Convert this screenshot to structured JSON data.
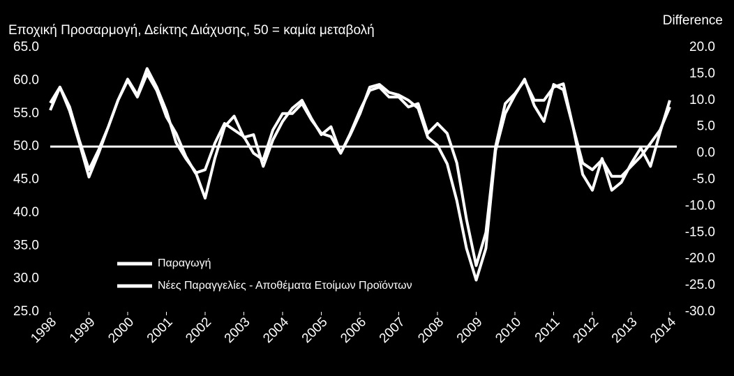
{
  "chart_data": {
    "type": "line",
    "title": "Εποχική Προσαρμογή, Δείκτης Διάχυσης, 50 = καμία μεταβολή",
    "y2_label": "Difference",
    "x": [
      1998,
      1998.25,
      1998.5,
      1998.75,
      1999,
      1999.25,
      1999.5,
      1999.75,
      2000,
      2000.25,
      2000.5,
      2000.75,
      2001,
      2001.25,
      2001.5,
      2001.75,
      2002,
      2002.25,
      2002.5,
      2002.75,
      2003,
      2003.25,
      2003.5,
      2003.75,
      2004,
      2004.25,
      2004.5,
      2004.75,
      2005,
      2005.25,
      2005.5,
      2005.75,
      2006,
      2006.25,
      2006.5,
      2006.75,
      2007,
      2007.25,
      2007.5,
      2007.75,
      2008,
      2008.25,
      2008.5,
      2008.75,
      2009,
      2009.25,
      2009.5,
      2009.75,
      2010,
      2010.25,
      2010.5,
      2010.75,
      2011,
      2011.25,
      2011.5,
      2011.75,
      2012,
      2012.25,
      2012.5,
      2012.75,
      2013,
      2013.25,
      2013.5,
      2013.75,
      2014
    ],
    "series": [
      {
        "name": "Παραγωγή",
        "color": "#ffffff",
        "axis": "y",
        "values": [
          55.5,
          59.0,
          56.0,
          51.0,
          46.5,
          49.5,
          53.0,
          57.0,
          60.0,
          57.5,
          61.0,
          58.5,
          54.5,
          52.0,
          48.5,
          46.0,
          46.5,
          50.5,
          53.5,
          52.5,
          51.5,
          49.0,
          48.0,
          52.5,
          55.0,
          55.0,
          56.5,
          54.0,
          52.0,
          51.5,
          49.0,
          52.0,
          55.5,
          58.5,
          59.0,
          57.5,
          57.5,
          56.0,
          56.5,
          52.0,
          53.5,
          52.0,
          47.5,
          39.0,
          32.0,
          37.0,
          50.0,
          56.5,
          58.0,
          60.0,
          57.0,
          57.0,
          59.0,
          59.5,
          53.0,
          47.5,
          46.5,
          48.0,
          45.5,
          45.5,
          47.0,
          48.5,
          50.5,
          52.5,
          56.0
        ]
      },
      {
        "name": "Νέες Παραγγελίες - Αποθέματα Ετοίμων Προϊόντων",
        "color": "#ffffff",
        "axis": "y2",
        "values": [
          9.5,
          12.5,
          8.0,
          2.0,
          -4.5,
          0.0,
          5.0,
          10.0,
          14.0,
          11.0,
          16.0,
          12.5,
          8.0,
          2.0,
          -1.0,
          -3.5,
          -8.5,
          -1.0,
          5.0,
          7.0,
          3.0,
          3.5,
          -2.5,
          2.5,
          6.0,
          8.5,
          10.0,
          6.5,
          3.5,
          5.0,
          0.0,
          3.5,
          7.5,
          12.5,
          13.0,
          11.5,
          11.0,
          10.0,
          8.5,
          3.0,
          1.5,
          -2.0,
          -9.0,
          -18.0,
          -24.0,
          -18.0,
          0.5,
          7.5,
          11.0,
          14.0,
          9.0,
          6.0,
          13.0,
          12.0,
          5.0,
          -4.0,
          -7.0,
          -1.0,
          -7.0,
          -5.5,
          -2.0,
          1.0,
          -2.5,
          4.0,
          10.0
        ]
      }
    ],
    "xlim": [
      1998,
      2014
    ],
    "xticks": [
      1998,
      1999,
      2000,
      2001,
      2002,
      2003,
      2004,
      2005,
      2006,
      2007,
      2008,
      2009,
      2010,
      2011,
      2012,
      2013,
      2014
    ],
    "ylim": [
      25,
      65
    ],
    "yticks": [
      {
        "value": 25,
        "label": "25.0"
      },
      {
        "value": 30,
        "label": "30.0"
      },
      {
        "value": 35,
        "label": "35.0"
      },
      {
        "value": 40,
        "label": "40.0"
      },
      {
        "value": 45,
        "label": "45.0"
      },
      {
        "value": 50,
        "label": "50.0"
      },
      {
        "value": 55,
        "label": "55.0"
      },
      {
        "value": 60,
        "label": "60.0"
      },
      {
        "value": 65,
        "label": "65.0"
      }
    ],
    "y2lim": [
      -30,
      20
    ],
    "y2ticks": [
      {
        "value": -30,
        "label": "-30.0"
      },
      {
        "value": -25,
        "label": "-25.0"
      },
      {
        "value": -20,
        "label": "-20.0"
      },
      {
        "value": -15,
        "label": "-15.0"
      },
      {
        "value": -10,
        "label": "-10.0"
      },
      {
        "value": -5,
        "label": "-5.0"
      },
      {
        "value": 0,
        "label": "0.0"
      },
      {
        "value": 5,
        "label": "5.0"
      },
      {
        "value": 10,
        "label": "10.0"
      },
      {
        "value": 15,
        "label": "15.0"
      },
      {
        "value": 20,
        "label": "20.0"
      }
    ],
    "reference_line": 50,
    "background": "#000000"
  }
}
